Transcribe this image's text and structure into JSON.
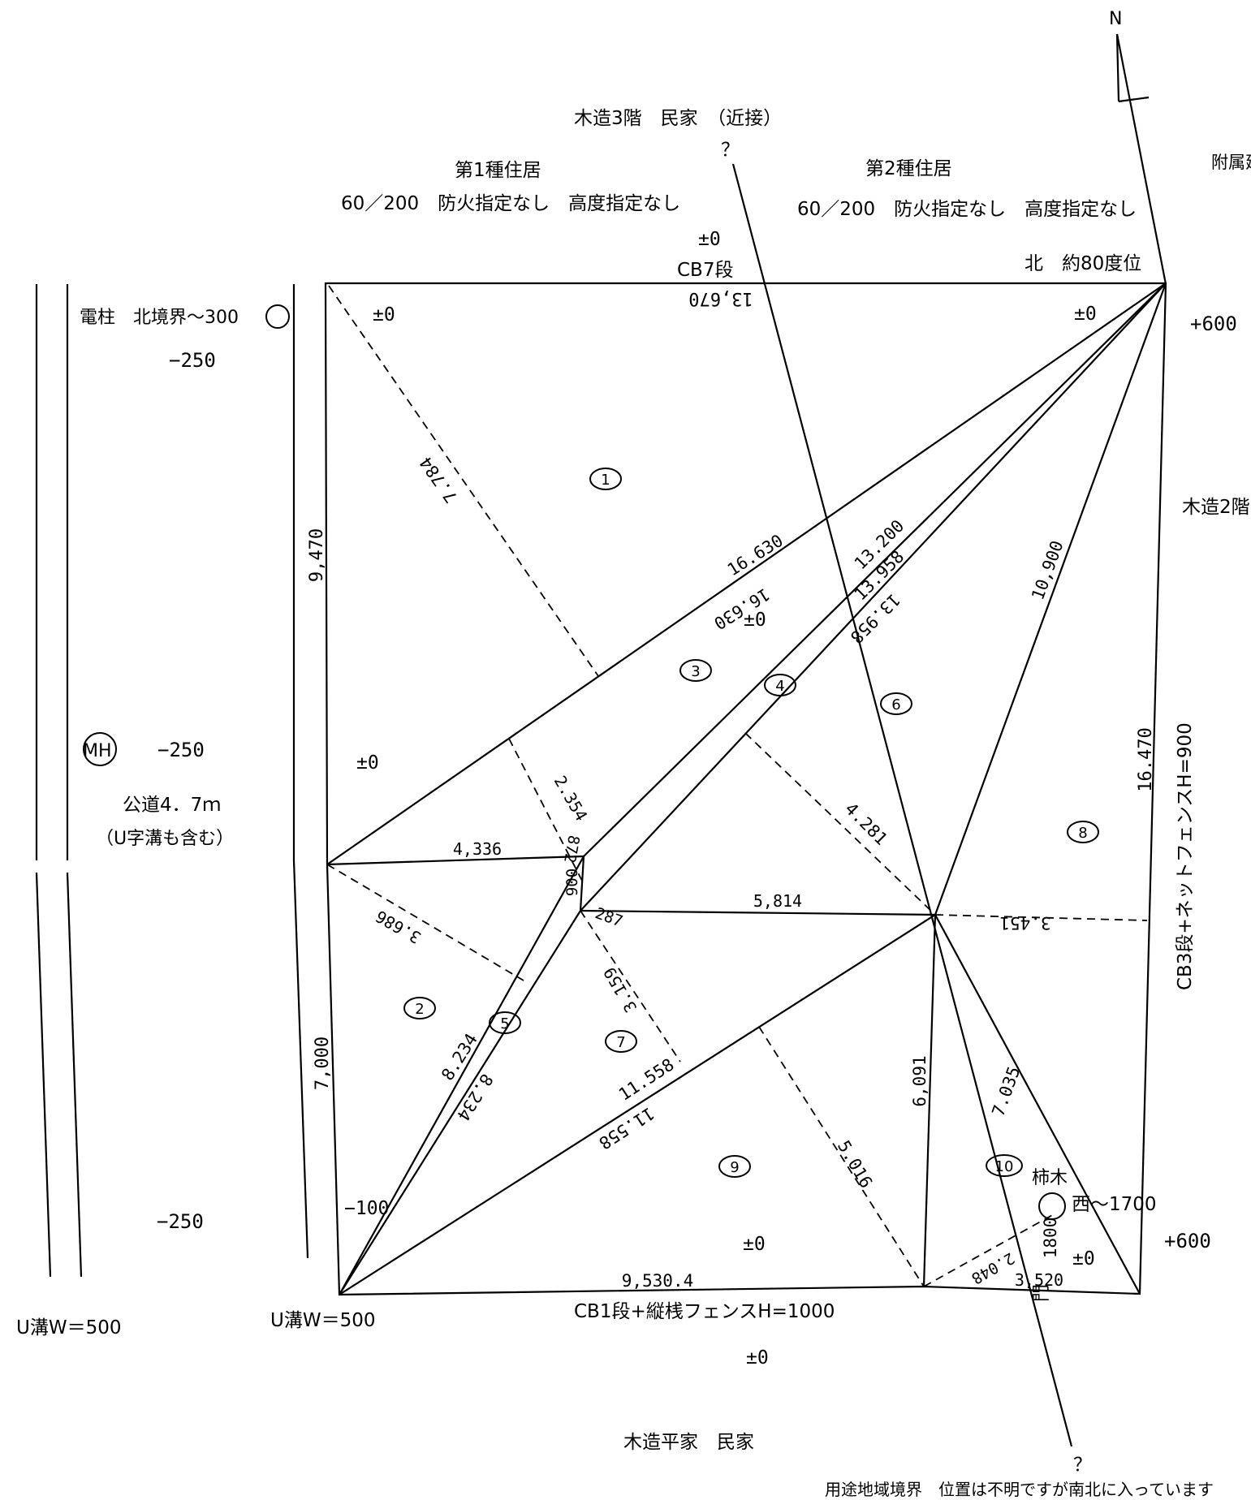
{
  "compass": {
    "label": "N"
  },
  "labels": {
    "north_neighbor": "木造3階　民家　（近接）",
    "north_q": "？",
    "zone1_name": "第1種住居",
    "zone1_detail": "60／200　防火指定なし　高度指定なし",
    "zone2_name": "第2種住居",
    "zone2_detail": "60／200　防火指定なし　高度指定なし",
    "east_outbuilding": "附属建",
    "north_level": "±0",
    "north_wall": "CB7段",
    "north_angle": "北　約80度位",
    "pole": "電柱　北境界〜300",
    "road_level_top": "−250",
    "road_level_mid": "−250",
    "road_level_bottom": "−250",
    "manhole": "MH",
    "road_name": "公道4．7ｍ",
    "road_note": "（U字溝も含む）",
    "gutter_left": "U溝W＝500",
    "gutter_right": "U溝W＝500",
    "level_nw": "±0",
    "level_ne": "±0",
    "level_east_top": "+600",
    "east_neighbor": "木造2階",
    "level_w": "±0",
    "level_center": "±0",
    "level_sw": "−100",
    "level_s_inner": "±0",
    "level_se_inner": "±0",
    "level_east_bottom": "+600",
    "east_fence": "CB3段+ネットフェンスH=900",
    "persimmon": "柿木",
    "persimmon_offset": "西〜1700",
    "gate": "門",
    "south_fence": "CB1段+縦桟フェンスH=1000",
    "south_level": "±0",
    "south_neighbor": "木造平家　民家",
    "south_q": "？",
    "zone_note": "用途地域境界　位置は不明ですが南北に入っています"
  },
  "dimensions": {
    "north_edge": "13,670",
    "west_upper": "9,470",
    "west_lower": "7,000",
    "south_edge": "9,530.4",
    "east_edge": "16.470",
    "diag_nw": "7.784",
    "diag_16630a": "16.630",
    "diag_16630b": "16.630",
    "diag_13200": "13.200",
    "diag_13958a": "13.958",
    "diag_13958b": "13.958",
    "diag_10900": "10,900",
    "d_4336": "4,336",
    "d_2354": "2.354",
    "d_872": "872",
    "d_900": "900",
    "d_287": "287",
    "d_4281": "4.281",
    "d_5814": "5,814",
    "d_3451": "3.451",
    "d_3686": "3.686",
    "d_3159": "3.159",
    "d_8234a": "8.234",
    "d_8234b": "8.234",
    "d_11558a": "11.558",
    "d_11558b": "11.558",
    "d_6091": "6,091",
    "d_7035": "7.035",
    "d_5016": "5.016",
    "d_2048": "2.048",
    "d_1800": "1800",
    "d_3520": "3,520"
  },
  "regions": [
    "1",
    "2",
    "3",
    "4",
    "5",
    "6",
    "7",
    "8",
    "9",
    "10"
  ]
}
